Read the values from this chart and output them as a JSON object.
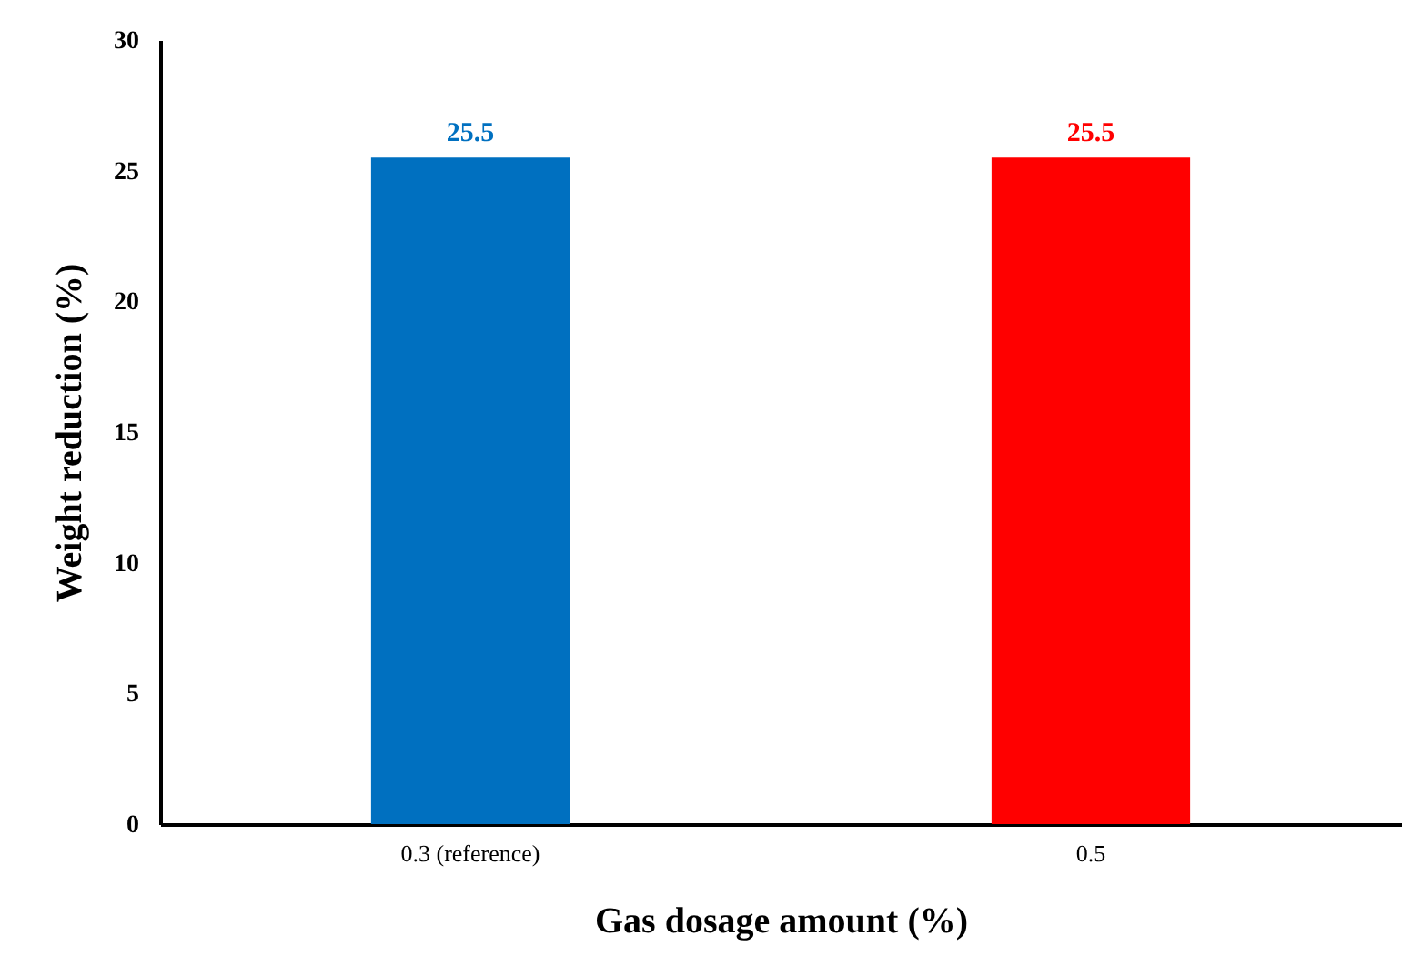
{
  "chart_data": {
    "type": "bar",
    "xlabel": "Gas dosage amount (%)",
    "ylabel": "Weight reduction (%)",
    "categories": [
      "0.3 (reference)",
      "0.5"
    ],
    "values": [
      25.5,
      25.5
    ],
    "colors": [
      "#0070c0",
      "#ff0000"
    ],
    "ylim": [
      0,
      30
    ],
    "yticks": [
      0,
      5,
      10,
      15,
      20,
      25,
      30
    ],
    "data_labels": true,
    "grid": false,
    "legend": false
  }
}
